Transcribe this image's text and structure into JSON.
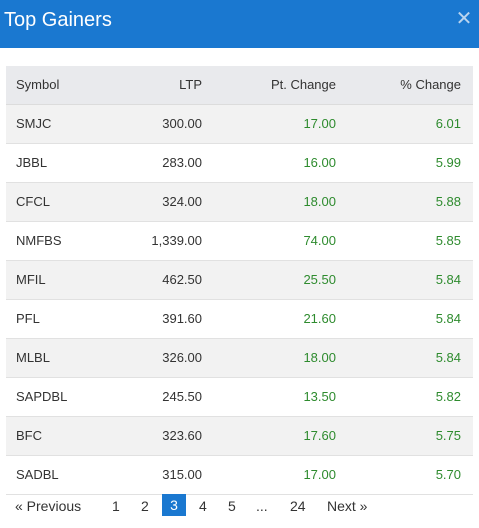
{
  "header": {
    "title": "Top Gainers",
    "close_icon": "close-icon"
  },
  "table": {
    "columns": [
      "Symbol",
      "LTP",
      "Pt. Change",
      "% Change"
    ],
    "rows": [
      [
        "SMJC",
        "300.00",
        "17.00",
        "6.01"
      ],
      [
        "JBBL",
        "283.00",
        "16.00",
        "5.99"
      ],
      [
        "CFCL",
        "324.00",
        "18.00",
        "5.88"
      ],
      [
        "NMFBS",
        "1,339.00",
        "74.00",
        "5.85"
      ],
      [
        "MFIL",
        "462.50",
        "25.50",
        "5.84"
      ],
      [
        "PFL",
        "391.60",
        "21.60",
        "5.84"
      ],
      [
        "MLBL",
        "326.00",
        "18.00",
        "5.84"
      ],
      [
        "SAPDBL",
        "245.50",
        "13.50",
        "5.82"
      ],
      [
        "BFC",
        "323.60",
        "17.60",
        "5.75"
      ],
      [
        "SADBL",
        "315.00",
        "17.00",
        "5.70"
      ]
    ],
    "positive_color": "#2e8b2e"
  },
  "pagination": {
    "previous": "« Previous",
    "pages": [
      "1",
      "2",
      "3",
      "4",
      "5",
      "...",
      "24"
    ],
    "active": "3",
    "next": "Next »"
  }
}
